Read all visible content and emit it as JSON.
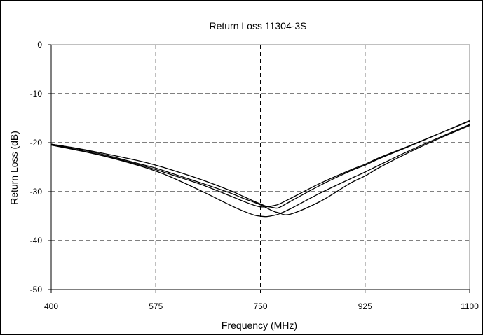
{
  "chart_data": {
    "type": "line",
    "title": "Return Loss 11304-3S",
    "xlabel": "Frequency (MHz)",
    "ylabel": "Return Loss (dB)",
    "xlim": [
      400,
      1100
    ],
    "ylim": [
      -50,
      0
    ],
    "x_ticks": [
      400,
      575,
      750,
      925,
      1100
    ],
    "y_ticks": [
      0,
      -10,
      -20,
      -30,
      -40,
      -50
    ],
    "grid": true,
    "legend": "none",
    "series": [
      {
        "x": [
          400,
          450,
          500,
          550,
          575,
          600,
          650,
          700,
          720,
          740,
          750,
          760,
          770,
          780,
          800,
          850,
          900,
          925,
          950,
          1000,
          1050,
          1100
        ],
        "y": [
          -20.3,
          -21.3,
          -22.5,
          -23.8,
          -24.6,
          -25.5,
          -27.5,
          -29.8,
          -30.9,
          -32.0,
          -32.5,
          -33.0,
          -33.2,
          -33.3,
          -32.0,
          -28.7,
          -25.8,
          -24.6,
          -23.2,
          -20.7,
          -18.1,
          -15.5
        ],
        "color": "#000000"
      },
      {
        "x": [
          400,
          450,
          500,
          550,
          575,
          600,
          650,
          700,
          720,
          740,
          750,
          760,
          770,
          780,
          800,
          850,
          900,
          925,
          950,
          1000,
          1050,
          1100
        ],
        "y": [
          -20.4,
          -21.6,
          -23.0,
          -24.6,
          -25.5,
          -26.5,
          -28.5,
          -30.9,
          -31.9,
          -32.8,
          -33.1,
          -33.1,
          -32.9,
          -32.6,
          -31.4,
          -28.3,
          -25.6,
          -24.4,
          -23.0,
          -20.6,
          -18.1,
          -15.6
        ],
        "color": "#000000"
      },
      {
        "x": [
          400,
          450,
          500,
          550,
          575,
          600,
          650,
          700,
          720,
          740,
          750,
          760,
          770,
          780,
          800,
          850,
          900,
          925,
          950,
          1000,
          1050,
          1100
        ],
        "y": [
          -20.5,
          -21.7,
          -23.1,
          -24.8,
          -25.8,
          -27.0,
          -29.8,
          -32.8,
          -33.9,
          -34.8,
          -35.0,
          -35.1,
          -34.9,
          -34.6,
          -33.5,
          -30.3,
          -27.4,
          -26.0,
          -24.5,
          -21.6,
          -18.9,
          -16.3
        ],
        "color": "#000000"
      },
      {
        "x": [
          400,
          450,
          500,
          550,
          575,
          600,
          650,
          700,
          720,
          740,
          750,
          760,
          770,
          780,
          800,
          850,
          900,
          925,
          950,
          1000,
          1050,
          1100
        ],
        "y": [
          -20.3,
          -21.4,
          -22.8,
          -24.4,
          -25.2,
          -26.2,
          -28.2,
          -30.3,
          -31.3,
          -32.2,
          -32.7,
          -33.3,
          -33.9,
          -34.3,
          -34.6,
          -32.0,
          -28.3,
          -26.8,
          -25.0,
          -21.9,
          -19.1,
          -16.5
        ],
        "color": "#000000"
      }
    ]
  }
}
